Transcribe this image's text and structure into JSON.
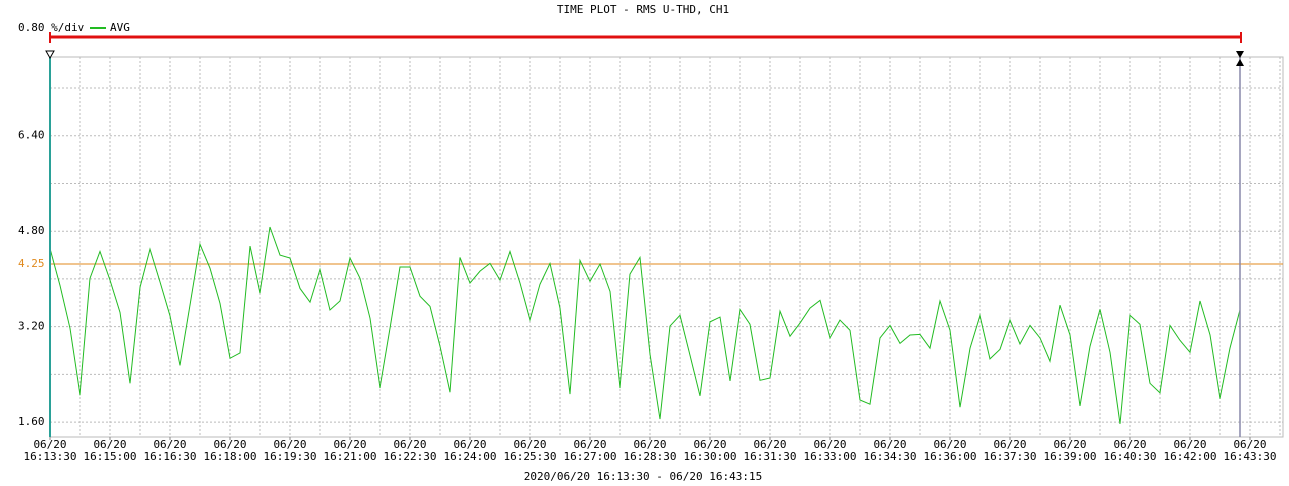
{
  "chart_data": {
    "type": "line",
    "title": "TIME PLOT - RMS  U-THD, CH1",
    "scale_label": "0.80 %/div",
    "subtitle": "2020/06/20 16:13:30 - 06/20 16:43:15",
    "series": [
      {
        "name": "AVG",
        "color": "#22bb22",
        "values": [
          4.51,
          3.89,
          3.17,
          2.05,
          4.01,
          4.46,
          3.98,
          3.44,
          2.25,
          3.86,
          4.5,
          3.95,
          3.38,
          2.55,
          3.56,
          4.58,
          4.18,
          3.59,
          2.67,
          2.76,
          4.55,
          3.76,
          4.87,
          4.4,
          4.35,
          3.84,
          3.61,
          4.16,
          3.48,
          3.63,
          4.35,
          4.01,
          3.34,
          2.17,
          3.17,
          4.2,
          4.2,
          3.71,
          3.54,
          2.87,
          2.1,
          4.36,
          3.93,
          4.13,
          4.26,
          3.98,
          4.46,
          3.93,
          3.31,
          3.91,
          4.26,
          3.51,
          2.07,
          4.31,
          3.96,
          4.25,
          3.79,
          2.17,
          4.08,
          4.36,
          2.74,
          1.65,
          3.21,
          3.39,
          2.72,
          2.04,
          3.28,
          3.36,
          2.29,
          3.49,
          3.24,
          2.3,
          2.34,
          3.46,
          3.04,
          3.26,
          3.51,
          3.64,
          3.01,
          3.31,
          3.14,
          1.97,
          1.9,
          3.01,
          3.22,
          2.92,
          3.06,
          3.07,
          2.84,
          3.63,
          3.14,
          1.85,
          2.84,
          3.39,
          2.66,
          2.82,
          3.31,
          2.91,
          3.22,
          3.01,
          2.62,
          3.56,
          3.06,
          1.87,
          2.87,
          3.49,
          2.77,
          1.57,
          3.39,
          3.24,
          2.25,
          2.09,
          3.22,
          2.97,
          2.77,
          3.63,
          3.06,
          1.99,
          2.84,
          3.48
        ]
      }
    ],
    "threshold": {
      "value": 4.25,
      "label": "4.25",
      "color": "#e08a1e"
    },
    "ylim": [
      1.35,
      7.72
    ],
    "yticks": [
      {
        "value": 1.6,
        "label": "1.60"
      },
      {
        "value": 3.2,
        "label": "3.20"
      },
      {
        "value": 4.8,
        "label": "4.80"
      },
      {
        "value": 6.4,
        "label": "6.40"
      }
    ],
    "ygrid": [
      1.6,
      2.4,
      3.2,
      4.0,
      4.8,
      5.6,
      6.4,
      7.2
    ],
    "xlim": [
      0,
      123.3
    ],
    "xticks": [
      {
        "value": 0,
        "date": "06/20",
        "time": "16:13:30"
      },
      {
        "value": 6,
        "date": "06/20",
        "time": "16:15:00"
      },
      {
        "value": 12,
        "date": "06/20",
        "time": "16:16:30"
      },
      {
        "value": 18,
        "date": "06/20",
        "time": "16:18:00"
      },
      {
        "value": 24,
        "date": "06/20",
        "time": "16:19:30"
      },
      {
        "value": 30,
        "date": "06/20",
        "time": "16:21:00"
      },
      {
        "value": 36,
        "date": "06/20",
        "time": "16:22:30"
      },
      {
        "value": 42,
        "date": "06/20",
        "time": "16:24:00"
      },
      {
        "value": 48,
        "date": "06/20",
        "time": "16:25:30"
      },
      {
        "value": 54,
        "date": "06/20",
        "time": "16:27:00"
      },
      {
        "value": 60,
        "date": "06/20",
        "time": "16:28:30"
      },
      {
        "value": 66,
        "date": "06/20",
        "time": "16:30:00"
      },
      {
        "value": 72,
        "date": "06/20",
        "time": "16:31:30"
      },
      {
        "value": 78,
        "date": "06/20",
        "time": "16:33:00"
      },
      {
        "value": 84,
        "date": "06/20",
        "time": "16:34:30"
      },
      {
        "value": 90,
        "date": "06/20",
        "time": "16:36:00"
      },
      {
        "value": 96,
        "date": "06/20",
        "time": "16:37:30"
      },
      {
        "value": 102,
        "date": "06/20",
        "time": "16:39:00"
      },
      {
        "value": 108,
        "date": "06/20",
        "time": "16:40:30"
      },
      {
        "value": 114,
        "date": "06/20",
        "time": "16:42:00"
      },
      {
        "value": 120,
        "date": "06/20",
        "time": "16:43:30"
      }
    ],
    "xgrid": [
      0,
      3,
      6,
      9,
      12,
      15,
      18,
      21,
      24,
      27,
      30,
      33,
      36,
      39,
      42,
      45,
      48,
      51,
      54,
      57,
      60,
      63,
      66,
      69,
      72,
      75,
      78,
      81,
      84,
      87,
      90,
      93,
      96,
      99,
      102,
      105,
      108,
      111,
      114,
      117,
      120,
      123
    ],
    "grid": true
  }
}
